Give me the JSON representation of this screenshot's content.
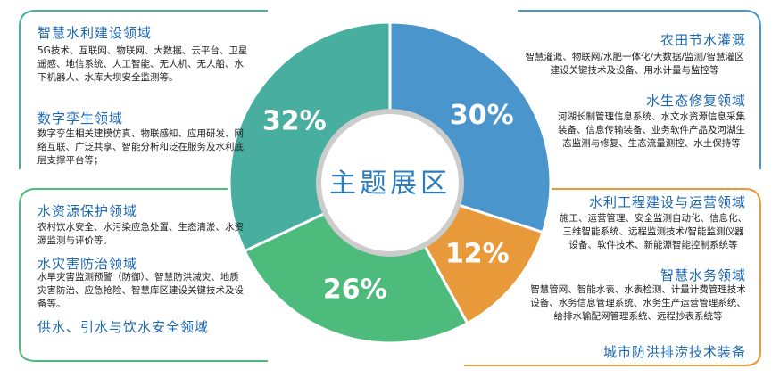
{
  "chart_data": {
    "type": "pie",
    "donut": true,
    "center_label": "主题展区",
    "values": [
      30,
      12,
      26,
      32
    ],
    "value_labels": [
      "30%",
      "12%",
      "26%",
      "32%"
    ],
    "colors": [
      "#4a95cb",
      "#e8993a",
      "#4dbb7c",
      "#48ae9f"
    ]
  },
  "panels": [
    {
      "sections": [
        {
          "heading": "智慧水利建设领域",
          "text": "5G技术、互联网、物联网、大数据、云平台、卫星遥感、地信系统、人工智能、无人机、无人船、水下机器人、水库大坝安全监测等。"
        },
        {
          "heading": "数字孪生领域",
          "text": "数字孪生相关建模仿真、物联感知、应用研发、网络互联、广泛共享、智能分析和泛在服务及水利底层支撑平台等；"
        }
      ]
    },
    {
      "sections": [
        {
          "heading": "农田节水灌溉",
          "text": "智慧灌溉、物联网/水肥一体化/大数据/监测/智慧灌区建设关键技术及设备、用水计量与监控等"
        },
        {
          "heading": "水生态修复领域",
          "text": "河湖长制管理信息系统、水文水资源信息采集装备、信息传输装备、业务软件产品及河湖生态监测与修复、生态流量测控、水土保持等"
        }
      ]
    },
    {
      "sections": [
        {
          "heading": "水资源保护领域",
          "text": "农村饮水安全、水污染应急处置、生态清淤、水资源监测与评价等。"
        },
        {
          "heading": "水灾害防治领域",
          "text": "水旱灾害监测预警（防御）、智慧防洪减灾、地质灾害防治、应急抢险、智慧库区建设关键技术及设备等。"
        },
        {
          "heading": "供水、引水与饮水安全领域"
        }
      ]
    },
    {
      "sections": [
        {
          "heading": "水利工程建设与运营领域",
          "text": "施工、运营管理、安全监测自动化、信息化、三维智能系统、远程监测技术/智能监测仪器设备、软件技术、新能源智能控制系统等"
        },
        {
          "heading": "智慧水务领域",
          "text": "智慧管网、智能水表、水表检测、计量计费管理技术设备、水务信息管理系统、水务生产运营管理系统、给排水输配网管理系统、远程抄表系统等"
        },
        {
          "heading": "城市防洪排涝技术装备"
        }
      ]
    }
  ]
}
